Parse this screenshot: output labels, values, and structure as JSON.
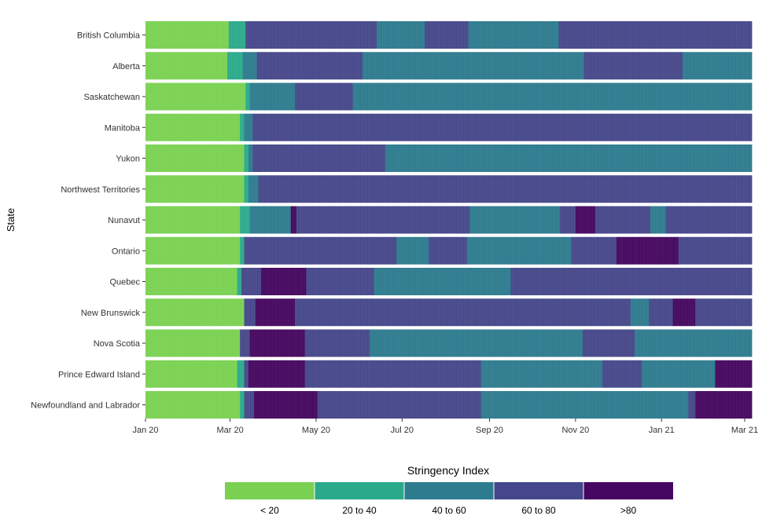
{
  "chart_data": {
    "type": "heatmap",
    "title": "",
    "xlabel": "",
    "ylabel": "State",
    "x_start": "2020-01-20",
    "x_end": "2021-03-25",
    "x_ticks": [
      {
        "date": "2020-01-20",
        "label": "Jan 20"
      },
      {
        "date": "2020-03-20",
        "label": "Mar 20"
      },
      {
        "date": "2020-05-20",
        "label": "May 20"
      },
      {
        "date": "2020-07-20",
        "label": "Jul 20"
      },
      {
        "date": "2020-09-20",
        "label": "Sep 20"
      },
      {
        "date": "2020-11-20",
        "label": "Nov 20"
      },
      {
        "date": "2021-01-20",
        "label": "Jan 21"
      },
      {
        "date": "2021-03-20",
        "label": "Mar 21"
      }
    ],
    "legend": {
      "title": "Stringency Index",
      "position": "bottom",
      "categories": [
        {
          "label": "< 20",
          "color": "#7ad151"
        },
        {
          "label": "20 to 40",
          "color": "#2aaa8a"
        },
        {
          "label": "40 to 60",
          "color": "#2d7b8e"
        },
        {
          "label": "60 to 80",
          "color": "#46478a"
        },
        {
          "label": ">80",
          "color": "#45075f"
        }
      ]
    },
    "rows": [
      {
        "state": "British Columbia",
        "segments": [
          {
            "start": "2020-01-20",
            "end": "2020-03-19",
            "category": 0
          },
          {
            "start": "2020-03-19",
            "end": "2020-03-31",
            "category": 1
          },
          {
            "start": "2020-03-31",
            "end": "2020-07-02",
            "category": 3
          },
          {
            "start": "2020-07-02",
            "end": "2020-08-05",
            "category": 2
          },
          {
            "start": "2020-08-05",
            "end": "2020-09-05",
            "category": 3
          },
          {
            "start": "2020-09-05",
            "end": "2020-11-08",
            "category": 2
          },
          {
            "start": "2020-11-08",
            "end": "2021-03-25",
            "category": 3
          }
        ]
      },
      {
        "state": "Alberta",
        "segments": [
          {
            "start": "2020-01-20",
            "end": "2020-03-18",
            "category": 0
          },
          {
            "start": "2020-03-18",
            "end": "2020-03-29",
            "category": 1
          },
          {
            "start": "2020-03-29",
            "end": "2020-04-08",
            "category": 2
          },
          {
            "start": "2020-04-08",
            "end": "2020-06-22",
            "category": 3
          },
          {
            "start": "2020-06-22",
            "end": "2020-11-26",
            "category": 2
          },
          {
            "start": "2020-11-26",
            "end": "2021-02-04",
            "category": 3
          },
          {
            "start": "2021-02-04",
            "end": "2021-03-25",
            "category": 2
          }
        ]
      },
      {
        "state": "Saskatchewan",
        "segments": [
          {
            "start": "2020-01-20",
            "end": "2020-03-31",
            "category": 0
          },
          {
            "start": "2020-03-31",
            "end": "2020-04-03",
            "category": 1
          },
          {
            "start": "2020-04-03",
            "end": "2020-05-05",
            "category": 2
          },
          {
            "start": "2020-05-05",
            "end": "2020-06-15",
            "category": 3
          },
          {
            "start": "2020-06-15",
            "end": "2021-03-25",
            "category": 2
          }
        ]
      },
      {
        "state": "Manitoba",
        "segments": [
          {
            "start": "2020-01-20",
            "end": "2020-03-27",
            "category": 0
          },
          {
            "start": "2020-03-27",
            "end": "2020-03-30",
            "category": 1
          },
          {
            "start": "2020-03-30",
            "end": "2020-04-05",
            "category": 2
          },
          {
            "start": "2020-04-05",
            "end": "2021-03-25",
            "category": 3
          }
        ]
      },
      {
        "state": "Yukon",
        "segments": [
          {
            "start": "2020-01-20",
            "end": "2020-03-30",
            "category": 0
          },
          {
            "start": "2020-03-30",
            "end": "2020-04-02",
            "category": 1
          },
          {
            "start": "2020-04-02",
            "end": "2020-04-05",
            "category": 2
          },
          {
            "start": "2020-04-05",
            "end": "2020-07-08",
            "category": 3
          },
          {
            "start": "2020-07-08",
            "end": "2021-03-25",
            "category": 2
          }
        ]
      },
      {
        "state": "Northwest Territories",
        "segments": [
          {
            "start": "2020-01-20",
            "end": "2020-03-30",
            "category": 0
          },
          {
            "start": "2020-03-30",
            "end": "2020-04-02",
            "category": 1
          },
          {
            "start": "2020-04-02",
            "end": "2020-04-09",
            "category": 2
          },
          {
            "start": "2020-04-09",
            "end": "2021-03-25",
            "category": 3
          }
        ]
      },
      {
        "state": "Nunavut",
        "segments": [
          {
            "start": "2020-01-20",
            "end": "2020-03-27",
            "category": 0
          },
          {
            "start": "2020-03-27",
            "end": "2020-04-03",
            "category": 1
          },
          {
            "start": "2020-04-03",
            "end": "2020-05-02",
            "category": 2
          },
          {
            "start": "2020-05-02",
            "end": "2020-05-06",
            "category": 4
          },
          {
            "start": "2020-05-06",
            "end": "2020-09-06",
            "category": 3
          },
          {
            "start": "2020-09-06",
            "end": "2020-11-09",
            "category": 2
          },
          {
            "start": "2020-11-09",
            "end": "2020-11-20",
            "category": 3
          },
          {
            "start": "2020-11-20",
            "end": "2020-12-04",
            "category": 4
          },
          {
            "start": "2020-12-04",
            "end": "2021-01-12",
            "category": 3
          },
          {
            "start": "2021-01-12",
            "end": "2021-01-23",
            "category": 2
          },
          {
            "start": "2021-01-23",
            "end": "2021-03-25",
            "category": 3
          }
        ]
      },
      {
        "state": "Ontario",
        "segments": [
          {
            "start": "2020-01-20",
            "end": "2020-03-27",
            "category": 0
          },
          {
            "start": "2020-03-27",
            "end": "2020-03-30",
            "category": 1
          },
          {
            "start": "2020-03-30",
            "end": "2020-07-16",
            "category": 3
          },
          {
            "start": "2020-07-16",
            "end": "2020-08-08",
            "category": 2
          },
          {
            "start": "2020-08-08",
            "end": "2020-09-04",
            "category": 3
          },
          {
            "start": "2020-09-04",
            "end": "2020-11-17",
            "category": 2
          },
          {
            "start": "2020-11-17",
            "end": "2020-12-19",
            "category": 3
          },
          {
            "start": "2020-12-19",
            "end": "2021-02-01",
            "category": 4
          },
          {
            "start": "2021-02-01",
            "end": "2021-03-25",
            "category": 3
          }
        ]
      },
      {
        "state": "Quebec",
        "segments": [
          {
            "start": "2020-01-20",
            "end": "2020-03-25",
            "category": 0
          },
          {
            "start": "2020-03-25",
            "end": "2020-03-28",
            "category": 1
          },
          {
            "start": "2020-03-28",
            "end": "2020-04-11",
            "category": 3
          },
          {
            "start": "2020-04-11",
            "end": "2020-05-13",
            "category": 4
          },
          {
            "start": "2020-05-13",
            "end": "2020-06-30",
            "category": 3
          },
          {
            "start": "2020-06-30",
            "end": "2020-10-05",
            "category": 2
          },
          {
            "start": "2020-10-05",
            "end": "2021-03-25",
            "category": 3
          }
        ]
      },
      {
        "state": "New Brunswick",
        "segments": [
          {
            "start": "2020-01-20",
            "end": "2020-03-30",
            "category": 0
          },
          {
            "start": "2020-03-30",
            "end": "2020-04-07",
            "category": 3
          },
          {
            "start": "2020-04-07",
            "end": "2020-05-05",
            "category": 4
          },
          {
            "start": "2020-05-05",
            "end": "2020-12-29",
            "category": 3
          },
          {
            "start": "2020-12-29",
            "end": "2021-01-11",
            "category": 2
          },
          {
            "start": "2021-01-11",
            "end": "2021-01-28",
            "category": 3
          },
          {
            "start": "2021-01-28",
            "end": "2021-02-13",
            "category": 4
          },
          {
            "start": "2021-02-13",
            "end": "2021-03-25",
            "category": 3
          }
        ]
      },
      {
        "state": "Nova Scotia",
        "segments": [
          {
            "start": "2020-01-20",
            "end": "2020-03-27",
            "category": 0
          },
          {
            "start": "2020-03-27",
            "end": "2020-04-03",
            "category": 3
          },
          {
            "start": "2020-04-03",
            "end": "2020-05-12",
            "category": 4
          },
          {
            "start": "2020-05-12",
            "end": "2020-06-27",
            "category": 3
          },
          {
            "start": "2020-06-27",
            "end": "2020-11-25",
            "category": 2
          },
          {
            "start": "2020-11-25",
            "end": "2021-01-01",
            "category": 3
          },
          {
            "start": "2021-01-01",
            "end": "2021-03-25",
            "category": 2
          }
        ]
      },
      {
        "state": "Prince Edward Island",
        "segments": [
          {
            "start": "2020-01-20",
            "end": "2020-03-25",
            "category": 0
          },
          {
            "start": "2020-03-25",
            "end": "2020-03-30",
            "category": 1
          },
          {
            "start": "2020-03-30",
            "end": "2020-04-02",
            "category": 3
          },
          {
            "start": "2020-04-02",
            "end": "2020-05-12",
            "category": 4
          },
          {
            "start": "2020-05-12",
            "end": "2020-09-14",
            "category": 3
          },
          {
            "start": "2020-09-14",
            "end": "2020-12-09",
            "category": 2
          },
          {
            "start": "2020-12-09",
            "end": "2021-01-06",
            "category": 3
          },
          {
            "start": "2021-01-06",
            "end": "2021-02-27",
            "category": 2
          },
          {
            "start": "2021-02-27",
            "end": "2021-03-25",
            "category": 4
          }
        ]
      },
      {
        "state": "Newfoundland and Labrador",
        "segments": [
          {
            "start": "2020-01-20",
            "end": "2020-03-27",
            "category": 0
          },
          {
            "start": "2020-03-27",
            "end": "2020-03-30",
            "category": 1
          },
          {
            "start": "2020-03-30",
            "end": "2020-04-06",
            "category": 3
          },
          {
            "start": "2020-04-06",
            "end": "2020-05-21",
            "category": 4
          },
          {
            "start": "2020-05-21",
            "end": "2020-09-14",
            "category": 3
          },
          {
            "start": "2020-09-14",
            "end": "2021-02-08",
            "category": 2
          },
          {
            "start": "2021-02-08",
            "end": "2021-02-13",
            "category": 3
          },
          {
            "start": "2021-02-13",
            "end": "2021-03-25",
            "category": 4
          }
        ]
      }
    ]
  }
}
